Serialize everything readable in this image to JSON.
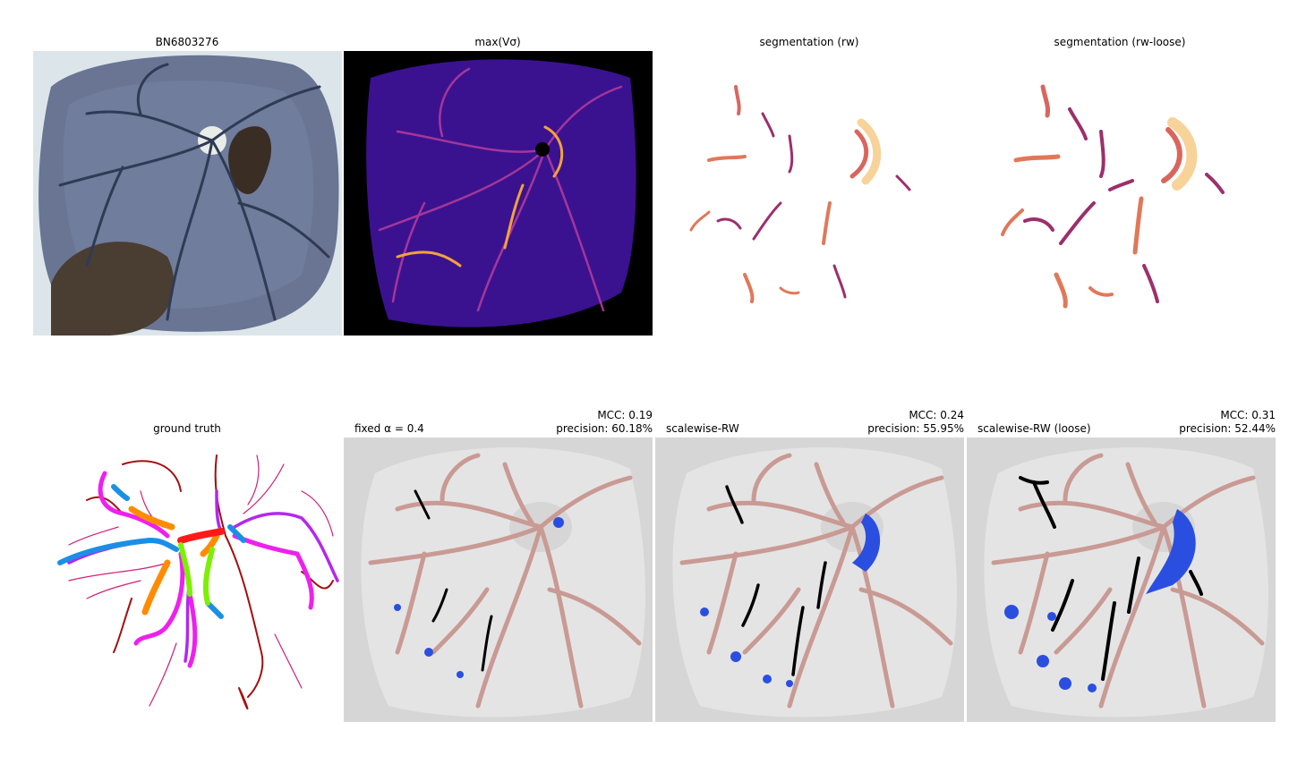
{
  "figure": {
    "top_row": [
      {
        "title": "BN6803276"
      },
      {
        "title": "max(Vσ)"
      },
      {
        "title": "segmentation (rw)"
      },
      {
        "title": "segmentation (rw-loose)"
      }
    ],
    "bottom_row": [
      {
        "title": "ground truth"
      },
      {
        "title": "fixed α = 0.4",
        "mcc": "MCC: 0.19",
        "precision": "precision: 60.18%"
      },
      {
        "title": "scalewise-RW",
        "mcc": "MCC: 0.24",
        "precision": "precision: 55.95%"
      },
      {
        "title": "scalewise-RW (loose)",
        "mcc": "MCC: 0.31",
        "precision": "precision: 52.44%"
      }
    ]
  },
  "colors": {
    "background": "#ffffff",
    "mask_outer": "#d6d6d6",
    "mask_inner": "#e4e4e4",
    "ground_truth_vessel": "#c99a94",
    "true_positive": "#000000",
    "false_positive": "#2a4fe0",
    "filter_background": "#000000",
    "filter_body": "#3a1290"
  }
}
